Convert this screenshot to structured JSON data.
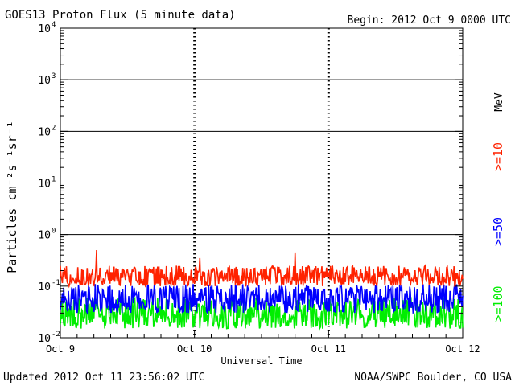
{
  "header": {
    "title": "GOES13 Proton Flux (5 minute data)",
    "begin": "Begin: 2012 Oct 9 0000 UTC"
  },
  "footer": {
    "updated": "Updated 2012 Oct 11 23:56:02 UTC",
    "source": "NOAA/SWPC Boulder, CO USA"
  },
  "colors": {
    "ge10": "#ff2200",
    "ge50": "#0000ff",
    "ge100": "#00ee00",
    "axis": "#000000",
    "background": "#ffffff"
  },
  "chart_data": {
    "type": "line",
    "title": "GOES13 Proton Flux (5 minute data)",
    "xlabel": "Universal Time",
    "ylabel": "Particles cm⁻²s⁻¹sr⁻¹",
    "yscale": "log",
    "ylim": [
      0.01,
      10000
    ],
    "xlim": [
      0,
      3
    ],
    "x_ticks": [
      {
        "x": 0,
        "label": "Oct 9"
      },
      {
        "x": 1,
        "label": "Oct 10"
      },
      {
        "x": 2,
        "label": "Oct 11"
      },
      {
        "x": 3,
        "label": "Oct 12"
      }
    ],
    "y_ticks": [
      {
        "value": 0.01,
        "base": "10",
        "exp": "-2"
      },
      {
        "value": 0.1,
        "base": "10",
        "exp": "-1"
      },
      {
        "value": 1,
        "base": "10",
        "exp": "0"
      },
      {
        "value": 10,
        "base": "10",
        "exp": "1"
      },
      {
        "value": 100,
        "base": "10",
        "exp": "2"
      },
      {
        "value": 1000,
        "base": "10",
        "exp": "3"
      },
      {
        "value": 10000,
        "base": "10",
        "exp": "4"
      }
    ],
    "threshold_lines": [
      {
        "value": 10,
        "style": "dashed"
      },
      {
        "value": 1,
        "style": "solid"
      },
      {
        "value": 100,
        "style": "solid"
      },
      {
        "value": 1000,
        "style": "solid"
      }
    ],
    "series": [
      {
        "name": ">=10",
        "color": "#ff2200",
        "base": 0.15,
        "min": 0.1,
        "max": 0.25,
        "spikes": [
          [
            0.27,
            0.5
          ],
          [
            1.75,
            0.45
          ],
          [
            1.04,
            0.35
          ]
        ]
      },
      {
        "name": ">=50",
        "color": "#0000ff",
        "base": 0.055,
        "min": 0.03,
        "max": 0.11,
        "spikes": []
      },
      {
        "name": ">=100",
        "color": "#00ee00",
        "base": 0.028,
        "min": 0.015,
        "max": 0.06,
        "spikes": []
      }
    ],
    "legend": {
      "position": "right",
      "unit_label": "MeV",
      "entries": [
        {
          "label": ">=10",
          "color": "#ff2200"
        },
        {
          "label": ">=50",
          "color": "#0000ff"
        },
        {
          "label": ">=100",
          "color": "#00ee00"
        }
      ]
    }
  }
}
